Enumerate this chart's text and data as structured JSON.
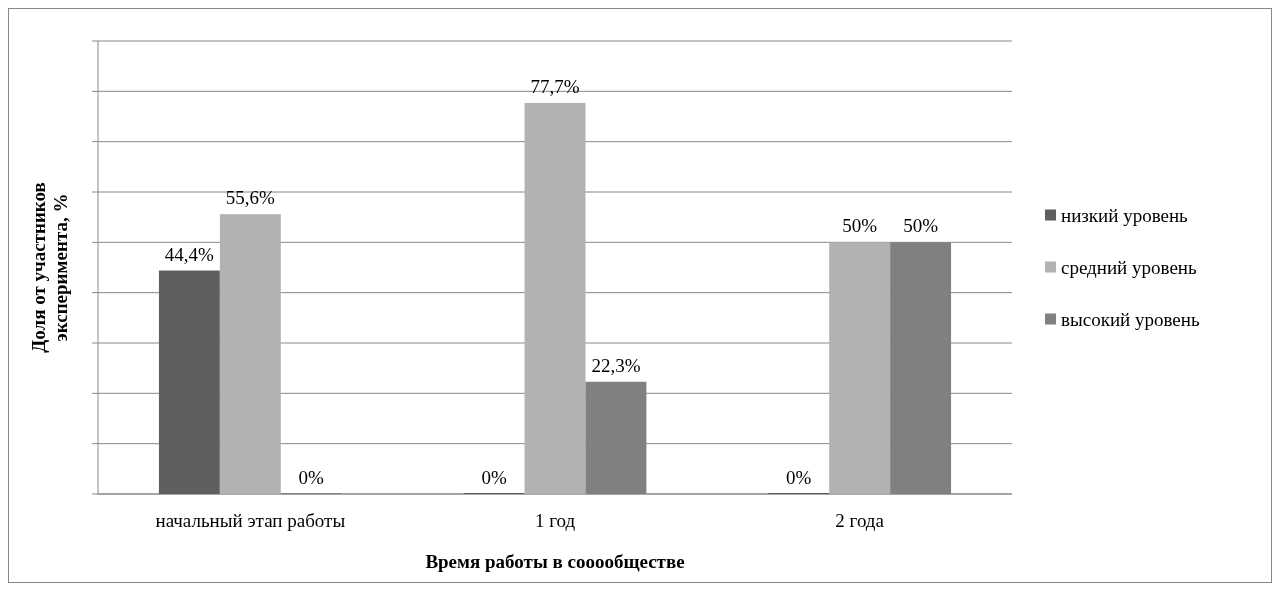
{
  "chart_data": {
    "type": "bar",
    "xlabel": "Время работы в  сооообществе",
    "ylabel": "Доля от участников эксперимента, %",
    "categories": [
      "начальный этап работы",
      "1 год",
      "2 года"
    ],
    "series": [
      {
        "name": "низкий уровень",
        "color": "#5f5f5f",
        "values": [
          44.4,
          0,
          0
        ],
        "value_labels": [
          "44,4%",
          "0%",
          "0%"
        ]
      },
      {
        "name": "средний уровень",
        "color": "#b2b2b2",
        "values": [
          55.6,
          77.7,
          50
        ],
        "value_labels": [
          "55,6%",
          "77,7%",
          "50%"
        ]
      },
      {
        "name": "высокий уровень",
        "color": "#808080",
        "values": [
          0,
          22.3,
          50
        ],
        "value_labels": [
          "0%",
          "22,3%",
          "50%"
        ]
      }
    ],
    "ylim": [
      0,
      90
    ],
    "yticks": [
      {
        "value": 0,
        "label": null
      },
      {
        "value": 10,
        "label": null
      },
      {
        "value": 20,
        "label": null
      },
      {
        "value": 30,
        "label": null
      },
      {
        "value": 40,
        "label": null
      },
      {
        "value": 50,
        "label": null
      },
      {
        "value": 60,
        "label": null
      },
      {
        "value": 70,
        "label": null
      },
      {
        "value": 80,
        "label": null
      },
      {
        "value": 90,
        "label": null
      }
    ],
    "grid": "y",
    "legend": "right"
  }
}
